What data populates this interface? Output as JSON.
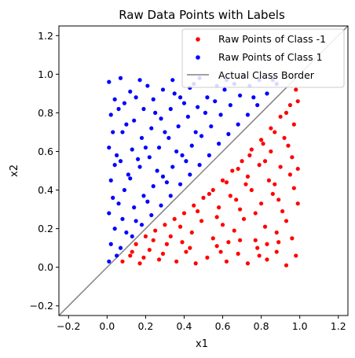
{
  "chart_data": {
    "type": "scatter",
    "title": "Raw Data Points with Labels",
    "xlabel": "x1",
    "ylabel": "x2",
    "xlim": [
      -0.25,
      1.25
    ],
    "ylim": [
      -0.25,
      1.25
    ],
    "xticks": [
      "−0.2",
      "0.0",
      "0.2",
      "0.4",
      "0.6",
      "0.8",
      "1.0",
      "1.2"
    ],
    "yticks": [
      "−0.2",
      "0.0",
      "0.2",
      "0.4",
      "0.6",
      "0.8",
      "1.0",
      "1.2"
    ],
    "tick_values": [
      -0.2,
      0.0,
      0.2,
      0.4,
      0.6,
      0.8,
      1.0,
      1.2
    ],
    "grid": false,
    "legend_position": "top-right",
    "series": [
      {
        "name": "Raw Points of Class -1",
        "color": "#ff0000",
        "marker": "circle",
        "points": [
          [
            0.08,
            0.03
          ],
          [
            0.12,
            0.06
          ],
          [
            0.17,
            0.02
          ],
          [
            0.22,
            0.09
          ],
          [
            0.27,
            0.04
          ],
          [
            0.31,
            0.12
          ],
          [
            0.36,
            0.03
          ],
          [
            0.41,
            0.08
          ],
          [
            0.46,
            0.02
          ],
          [
            0.52,
            0.05
          ],
          [
            0.57,
            0.11
          ],
          [
            0.62,
            0.03
          ],
          [
            0.68,
            0.07
          ],
          [
            0.73,
            0.02
          ],
          [
            0.78,
            0.1
          ],
          [
            0.83,
            0.04
          ],
          [
            0.88,
            0.08
          ],
          [
            0.93,
            0.01
          ],
          [
            0.98,
            0.06
          ],
          [
            0.15,
            0.12
          ],
          [
            0.2,
            0.16
          ],
          [
            0.25,
            0.19
          ],
          [
            0.3,
            0.22
          ],
          [
            0.35,
            0.25
          ],
          [
            0.4,
            0.28
          ],
          [
            0.45,
            0.32
          ],
          [
            0.5,
            0.36
          ],
          [
            0.55,
            0.4
          ],
          [
            0.6,
            0.45
          ],
          [
            0.65,
            0.5
          ],
          [
            0.7,
            0.55
          ],
          [
            0.75,
            0.61
          ],
          [
            0.8,
            0.66
          ],
          [
            0.85,
            0.72
          ],
          [
            0.9,
            0.78
          ],
          [
            0.95,
            0.84
          ],
          [
            0.98,
            0.92
          ],
          [
            0.24,
            0.14
          ],
          [
            0.33,
            0.16
          ],
          [
            0.44,
            0.18
          ],
          [
            0.55,
            0.15
          ],
          [
            0.66,
            0.19
          ],
          [
            0.77,
            0.14
          ],
          [
            0.88,
            0.18
          ],
          [
            0.96,
            0.15
          ],
          [
            0.38,
            0.21
          ],
          [
            0.49,
            0.24
          ],
          [
            0.6,
            0.22
          ],
          [
            0.71,
            0.25
          ],
          [
            0.82,
            0.21
          ],
          [
            0.93,
            0.24
          ],
          [
            0.47,
            0.29
          ],
          [
            0.58,
            0.31
          ],
          [
            0.69,
            0.3
          ],
          [
            0.8,
            0.33
          ],
          [
            0.91,
            0.29
          ],
          [
            0.99,
            0.33
          ],
          [
            0.53,
            0.38
          ],
          [
            0.64,
            0.37
          ],
          [
            0.75,
            0.4
          ],
          [
            0.86,
            0.38
          ],
          [
            0.97,
            0.41
          ],
          [
            0.62,
            0.44
          ],
          [
            0.73,
            0.47
          ],
          [
            0.84,
            0.45
          ],
          [
            0.95,
            0.48
          ],
          [
            0.68,
            0.51
          ],
          [
            0.79,
            0.53
          ],
          [
            0.9,
            0.52
          ],
          [
            0.74,
            0.58
          ],
          [
            0.85,
            0.6
          ],
          [
            0.96,
            0.57
          ],
          [
            0.81,
            0.64
          ],
          [
            0.92,
            0.67
          ],
          [
            0.87,
            0.7
          ],
          [
            0.97,
            0.74
          ],
          [
            0.93,
            0.8
          ],
          [
            0.99,
            0.86
          ],
          [
            0.43,
            0.1
          ],
          [
            0.63,
            0.13
          ],
          [
            0.83,
            0.12
          ],
          [
            0.13,
            0.08
          ],
          [
            0.19,
            0.05
          ],
          [
            0.29,
            0.07
          ],
          [
            0.39,
            0.13
          ],
          [
            0.59,
            0.08
          ],
          [
            0.69,
            0.14
          ],
          [
            0.79,
            0.06
          ],
          [
            0.89,
            0.13
          ],
          [
            0.57,
            0.26
          ],
          [
            0.67,
            0.35
          ],
          [
            0.77,
            0.28
          ],
          [
            0.87,
            0.43
          ],
          [
            0.72,
            0.43
          ],
          [
            0.82,
            0.55
          ],
          [
            0.94,
            0.63
          ],
          [
            0.89,
            0.35
          ],
          [
            0.99,
            0.51
          ]
        ]
      },
      {
        "name": "Raw Points of Class 1",
        "color": "#0000ff",
        "marker": "circle",
        "points": [
          [
            0.01,
            0.03
          ],
          [
            0.02,
            0.12
          ],
          [
            0.04,
            0.2
          ],
          [
            0.01,
            0.28
          ],
          [
            0.03,
            0.36
          ],
          [
            0.02,
            0.45
          ],
          [
            0.04,
            0.53
          ],
          [
            0.01,
            0.62
          ],
          [
            0.03,
            0.7
          ],
          [
            0.02,
            0.79
          ],
          [
            0.04,
            0.87
          ],
          [
            0.01,
            0.96
          ],
          [
            0.07,
            0.1
          ],
          [
            0.08,
            0.25
          ],
          [
            0.09,
            0.4
          ],
          [
            0.07,
            0.55
          ],
          [
            0.08,
            0.7
          ],
          [
            0.09,
            0.85
          ],
          [
            0.07,
            0.98
          ],
          [
            0.13,
            0.16
          ],
          [
            0.14,
            0.31
          ],
          [
            0.12,
            0.46
          ],
          [
            0.13,
            0.61
          ],
          [
            0.14,
            0.76
          ],
          [
            0.12,
            0.91
          ],
          [
            0.18,
            0.22
          ],
          [
            0.19,
            0.37
          ],
          [
            0.17,
            0.52
          ],
          [
            0.18,
            0.67
          ],
          [
            0.19,
            0.82
          ],
          [
            0.17,
            0.97
          ],
          [
            0.23,
            0.27
          ],
          [
            0.24,
            0.42
          ],
          [
            0.22,
            0.57
          ],
          [
            0.23,
            0.72
          ],
          [
            0.24,
            0.87
          ],
          [
            0.28,
            0.32
          ],
          [
            0.29,
            0.47
          ],
          [
            0.27,
            0.62
          ],
          [
            0.28,
            0.77
          ],
          [
            0.29,
            0.92
          ],
          [
            0.33,
            0.37
          ],
          [
            0.34,
            0.52
          ],
          [
            0.32,
            0.67
          ],
          [
            0.33,
            0.82
          ],
          [
            0.34,
            0.97
          ],
          [
            0.38,
            0.43
          ],
          [
            0.39,
            0.58
          ],
          [
            0.37,
            0.73
          ],
          [
            0.38,
            0.88
          ],
          [
            0.43,
            0.48
          ],
          [
            0.44,
            0.63
          ],
          [
            0.42,
            0.78
          ],
          [
            0.43,
            0.93
          ],
          [
            0.48,
            0.53
          ],
          [
            0.49,
            0.68
          ],
          [
            0.47,
            0.83
          ],
          [
            0.48,
            0.98
          ],
          [
            0.53,
            0.58
          ],
          [
            0.54,
            0.73
          ],
          [
            0.52,
            0.88
          ],
          [
            0.58,
            0.64
          ],
          [
            0.59,
            0.79
          ],
          [
            0.57,
            0.94
          ],
          [
            0.63,
            0.69
          ],
          [
            0.64,
            0.84
          ],
          [
            0.62,
            0.97
          ],
          [
            0.68,
            0.74
          ],
          [
            0.69,
            0.89
          ],
          [
            0.73,
            0.79
          ],
          [
            0.74,
            0.94
          ],
          [
            0.78,
            0.84
          ],
          [
            0.79,
            0.97
          ],
          [
            0.83,
            0.9
          ],
          [
            0.88,
            0.95
          ],
          [
            0.05,
            0.06
          ],
          [
            0.06,
            0.33
          ],
          [
            0.05,
            0.58
          ],
          [
            0.06,
            0.82
          ],
          [
            0.1,
            0.18
          ],
          [
            0.11,
            0.48
          ],
          [
            0.1,
            0.74
          ],
          [
            0.15,
            0.24
          ],
          [
            0.16,
            0.56
          ],
          [
            0.15,
            0.88
          ],
          [
            0.21,
            0.34
          ],
          [
            0.2,
            0.62
          ],
          [
            0.21,
            0.94
          ],
          [
            0.26,
            0.5
          ],
          [
            0.25,
            0.8
          ],
          [
            0.31,
            0.44
          ],
          [
            0.3,
            0.7
          ],
          [
            0.36,
            0.6
          ],
          [
            0.35,
            0.9
          ],
          [
            0.41,
            0.55
          ],
          [
            0.4,
            0.85
          ],
          [
            0.46,
            0.7
          ],
          [
            0.45,
            0.95
          ],
          [
            0.51,
            0.8
          ],
          [
            0.56,
            0.86
          ],
          [
            0.61,
            0.92
          ],
          [
            0.66,
            0.95
          ],
          [
            0.71,
            0.99
          ],
          [
            0.76,
            0.88
          ],
          [
            0.86,
            0.97
          ]
        ]
      }
    ],
    "lines": [
      {
        "name": "Actual Class Border",
        "color": "#808080",
        "x": [
          -0.25,
          1.25
        ],
        "y": [
          -0.25,
          1.25
        ]
      }
    ]
  }
}
